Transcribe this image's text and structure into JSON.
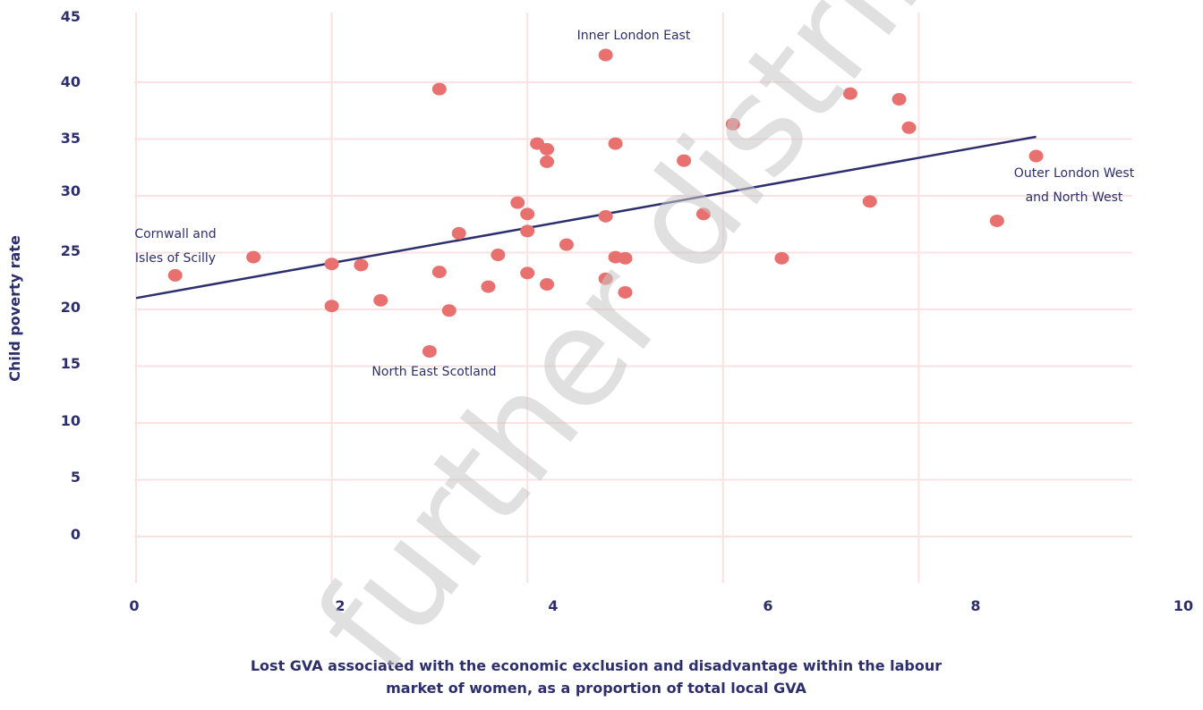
{
  "chart_data": {
    "type": "scatter",
    "xlabel_lines": [
      "Lost GVA associated with the economic exclusion and disadvantage within the labour",
      "market of women, as a proportion of total local GVA"
    ],
    "ylabel": "Child poverty rate",
    "x_ticks": [
      "0",
      "2",
      "4",
      "6",
      "8",
      "10"
    ],
    "y_ticks": [
      "45",
      "40",
      "35",
      "30",
      "25",
      "20",
      "15",
      "10",
      "5",
      "0"
    ],
    "points": [
      {
        "x": 0.4,
        "y": 23.0
      },
      {
        "x": 1.2,
        "y": 24.6
      },
      {
        "x": 2.0,
        "y": 24.0
      },
      {
        "x": 2.0,
        "y": 20.3
      },
      {
        "x": 2.3,
        "y": 23.9
      },
      {
        "x": 2.5,
        "y": 20.8
      },
      {
        "x": 3.0,
        "y": 16.3
      },
      {
        "x": 3.1,
        "y": 23.3
      },
      {
        "x": 3.1,
        "y": 39.4
      },
      {
        "x": 3.2,
        "y": 19.9
      },
      {
        "x": 3.3,
        "y": 26.7
      },
      {
        "x": 3.6,
        "y": 22.0
      },
      {
        "x": 3.7,
        "y": 24.8
      },
      {
        "x": 3.9,
        "y": 29.4
      },
      {
        "x": 4.0,
        "y": 28.4
      },
      {
        "x": 4.0,
        "y": 26.9
      },
      {
        "x": 4.0,
        "y": 23.2
      },
      {
        "x": 4.1,
        "y": 34.6
      },
      {
        "x": 4.2,
        "y": 34.1
      },
      {
        "x": 4.2,
        "y": 33.0
      },
      {
        "x": 4.2,
        "y": 22.2
      },
      {
        "x": 4.4,
        "y": 25.7
      },
      {
        "x": 4.8,
        "y": 42.4
      },
      {
        "x": 4.8,
        "y": 28.2
      },
      {
        "x": 4.8,
        "y": 22.7
      },
      {
        "x": 4.9,
        "y": 34.6
      },
      {
        "x": 4.9,
        "y": 24.6
      },
      {
        "x": 5.0,
        "y": 24.5
      },
      {
        "x": 5.0,
        "y": 21.5
      },
      {
        "x": 5.6,
        "y": 33.1
      },
      {
        "x": 5.8,
        "y": 28.4
      },
      {
        "x": 6.1,
        "y": 36.3
      },
      {
        "x": 6.6,
        "y": 24.5
      },
      {
        "x": 7.3,
        "y": 39.0
      },
      {
        "x": 7.5,
        "y": 29.5
      },
      {
        "x": 7.8,
        "y": 38.5
      },
      {
        "x": 7.9,
        "y": 36.0
      },
      {
        "x": 8.8,
        "y": 27.8
      },
      {
        "x": 9.2,
        "y": 33.5
      }
    ],
    "trendline": [
      {
        "x": 0,
        "y": 21
      },
      {
        "x": 9.2,
        "y": 35.2
      }
    ],
    "annotations": [
      {
        "lines": [
          "Inner London East"
        ]
      },
      {
        "lines": [
          "Outer London West",
          "and North West"
        ]
      },
      {
        "lines": [
          "Cornwall and",
          "Isles of Scilly"
        ]
      },
      {
        "lines": [
          "North East Scotland"
        ]
      }
    ],
    "colors": {
      "point": "#e8716f",
      "trendline": "#2d2e6e",
      "grid": "#fbe1e1",
      "text": "#2d2e6e"
    },
    "watermark": "further distribution"
  }
}
